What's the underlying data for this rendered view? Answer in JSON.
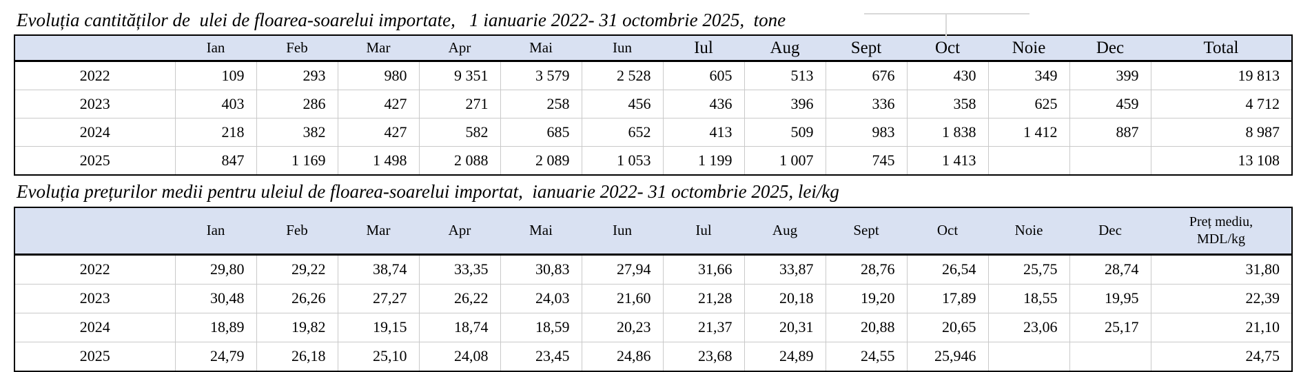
{
  "colors": {
    "header_fill": "#d9e1f2",
    "grid_line": "#c9c9c9",
    "ghost_grid_line": "#d8d8d8",
    "border": "#000000"
  },
  "ghost_grid": {
    "description": "empty spreadsheet cell gridlines visible above table"
  },
  "table1": {
    "title": "Evoluția cantităților de  ulei de floarea-soarelui importate,   1 ianuarie 2022- 31 octombrie 2025,  tone",
    "columns": [
      "",
      "Ian",
      "Feb",
      "Mar",
      "Apr",
      "Mai",
      "Iun",
      "Iul",
      "Aug",
      "Sept",
      "Oct",
      "Noie",
      "Dec",
      "Total"
    ],
    "rows": [
      {
        "year": "2022",
        "values": [
          "109",
          "293",
          "980",
          "9 351",
          "3 579",
          "2 528",
          "605",
          "513",
          "676",
          "430",
          "349",
          "399",
          "19 813"
        ]
      },
      {
        "year": "2023",
        "values": [
          "403",
          "286",
          "427",
          "271",
          "258",
          "456",
          "436",
          "396",
          "336",
          "358",
          "625",
          "459",
          "4 712"
        ]
      },
      {
        "year": "2024",
        "values": [
          "218",
          "382",
          "427",
          "582",
          "685",
          "652",
          "413",
          "509",
          "983",
          "1 838",
          "1 412",
          "887",
          "8 987"
        ]
      },
      {
        "year": "2025",
        "values": [
          "847",
          "1 169",
          "1 498",
          "2 088",
          "2 089",
          "1 053",
          "1 199",
          "1 007",
          "745",
          "1 413",
          "",
          "",
          "13 108"
        ]
      }
    ]
  },
  "table2": {
    "title": "Evoluția prețurilor medii pentru uleiul de floarea-soarelui importat,  ianuarie 2022- 31 octombrie 2025, lei/kg",
    "columns": [
      "",
      "Ian",
      "Feb",
      "Mar",
      "Apr",
      "Mai",
      "Iun",
      "Iul",
      "Aug",
      "Sept",
      "Oct",
      "Noie",
      "Dec",
      "Preț mediu,\nMDL/kg"
    ],
    "rows": [
      {
        "year": "2022",
        "values": [
          "29,80",
          "29,22",
          "38,74",
          "33,35",
          "30,83",
          "27,94",
          "31,66",
          "33,87",
          "28,76",
          "26,54",
          "25,75",
          "28,74",
          "31,80"
        ]
      },
      {
        "year": "2023",
        "values": [
          "30,48",
          "26,26",
          "27,27",
          "26,22",
          "24,03",
          "21,60",
          "21,28",
          "20,18",
          "19,20",
          "17,89",
          "18,55",
          "19,95",
          "22,39"
        ]
      },
      {
        "year": "2024",
        "values": [
          "18,89",
          "19,82",
          "19,15",
          "18,74",
          "18,59",
          "20,23",
          "21,37",
          "20,31",
          "20,88",
          "20,65",
          "23,06",
          "25,17",
          "21,10"
        ]
      },
      {
        "year": "2025",
        "values": [
          "24,79",
          "26,18",
          "25,10",
          "24,08",
          "23,45",
          "24,86",
          "23,68",
          "24,89",
          "24,55",
          "25,946",
          "",
          "",
          "24,75"
        ]
      }
    ]
  }
}
